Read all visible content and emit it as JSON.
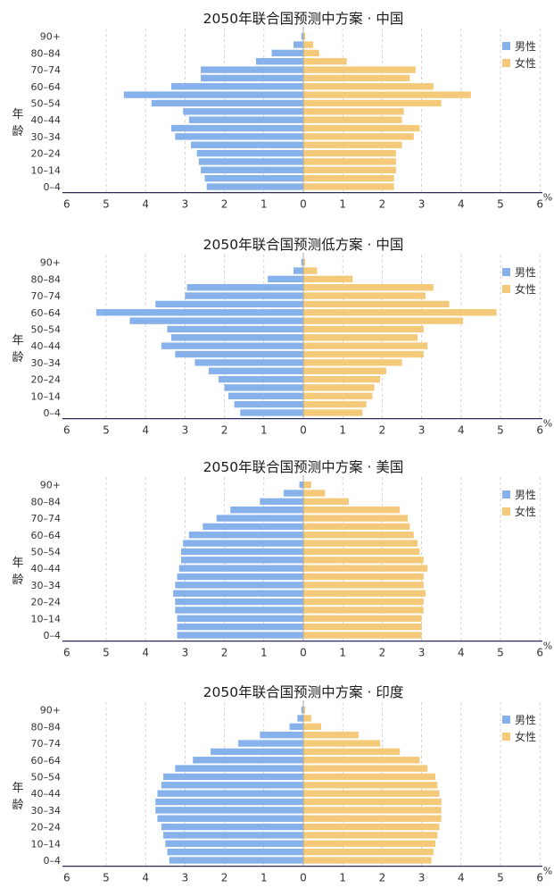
{
  "chart_data": [
    {
      "type": "bar",
      "title": "2050年联合国预测中方案 · 中国",
      "ylabel": "年龄",
      "xunit": "%",
      "xticks": [
        "6",
        "5",
        "4",
        "3",
        "2",
        "1",
        "0",
        "1",
        "2",
        "3",
        "4",
        "5",
        "6"
      ],
      "xlim": [
        -6,
        6
      ],
      "grid": true,
      "legend_position": "top-right",
      "colors": {
        "male": "#86b1ea",
        "female": "#f4c979"
      },
      "categories": [
        "0–4",
        "5–9",
        "10–14",
        "15–19",
        "20–24",
        "25–29",
        "30–34",
        "35–39",
        "40–44",
        "45–49",
        "50–54",
        "55–59",
        "60–64",
        "65–69",
        "70–74",
        "75–79",
        "80–84",
        "85–89",
        "90+"
      ],
      "category_labels_shown": [
        "0–4",
        "",
        "10–14",
        "",
        "20–24",
        "",
        "30–34",
        "",
        "40–44",
        "",
        "50–54",
        "",
        "60–64",
        "",
        "70–74",
        "",
        "80–84",
        "",
        "90+"
      ],
      "series": [
        {
          "name": "男性",
          "values": [
            2.45,
            2.5,
            2.6,
            2.65,
            2.7,
            2.85,
            3.25,
            3.35,
            2.9,
            3.05,
            3.85,
            4.55,
            3.35,
            2.6,
            2.6,
            1.2,
            0.8,
            0.25,
            0.05
          ]
        },
        {
          "name": "女性",
          "values": [
            2.3,
            2.3,
            2.35,
            2.35,
            2.35,
            2.5,
            2.8,
            2.95,
            2.5,
            2.55,
            3.5,
            4.25,
            3.3,
            2.7,
            2.85,
            1.1,
            0.4,
            0.25,
            0.05
          ]
        }
      ]
    },
    {
      "type": "bar",
      "title": "2050年联合国预测低方案 · 中国",
      "ylabel": "年龄",
      "xunit": "%",
      "xticks": [
        "6",
        "5",
        "4",
        "3",
        "2",
        "1",
        "0",
        "1",
        "2",
        "3",
        "4",
        "5",
        "6"
      ],
      "xlim": [
        -6,
        6
      ],
      "grid": true,
      "legend_position": "top-right",
      "colors": {
        "male": "#86b1ea",
        "female": "#f4c979"
      },
      "categories": [
        "0–4",
        "5–9",
        "10–14",
        "15–19",
        "20–24",
        "25–29",
        "30–34",
        "35–39",
        "40–44",
        "45–49",
        "50–54",
        "55–59",
        "60–64",
        "65–69",
        "70–74",
        "75–79",
        "80–84",
        "85–89",
        "90+"
      ],
      "category_labels_shown": [
        "0–4",
        "",
        "10–14",
        "",
        "20–24",
        "",
        "30–34",
        "",
        "40–44",
        "",
        "50–54",
        "",
        "60–64",
        "",
        "70–74",
        "",
        "80–84",
        "",
        "90+"
      ],
      "series": [
        {
          "name": "男性",
          "values": [
            1.6,
            1.75,
            1.9,
            2.0,
            2.15,
            2.4,
            2.75,
            3.25,
            3.6,
            3.35,
            3.45,
            4.4,
            5.25,
            3.75,
            3.0,
            2.95,
            0.9,
            0.25,
            0.05
          ]
        },
        {
          "name": "女性",
          "values": [
            1.5,
            1.6,
            1.75,
            1.8,
            1.95,
            2.1,
            2.5,
            3.05,
            3.15,
            2.9,
            3.05,
            4.05,
            4.9,
            3.7,
            3.1,
            3.3,
            1.25,
            0.35,
            0.05
          ]
        }
      ]
    },
    {
      "type": "bar",
      "title": "2050年联合国预测中方案 · 美国",
      "ylabel": "年龄",
      "xunit": "%",
      "xticks": [
        "6",
        "5",
        "4",
        "3",
        "2",
        "1",
        "0",
        "1",
        "2",
        "3",
        "4",
        "5",
        "6"
      ],
      "xlim": [
        -6,
        6
      ],
      "grid": true,
      "legend_position": "top-right",
      "colors": {
        "male": "#86b1ea",
        "female": "#f4c979"
      },
      "categories": [
        "0–4",
        "5–9",
        "10–14",
        "15–19",
        "20–24",
        "25–29",
        "30–34",
        "35–39",
        "40–44",
        "45–49",
        "50–54",
        "55–59",
        "60–64",
        "65–69",
        "70–74",
        "75–79",
        "80–84",
        "85–89",
        "90+"
      ],
      "category_labels_shown": [
        "0–4",
        "",
        "10–14",
        "",
        "20–24",
        "",
        "30–34",
        "",
        "40–44",
        "",
        "50–54",
        "",
        "60–64",
        "",
        "70–74",
        "",
        "80–84",
        "",
        "90+"
      ],
      "series": [
        {
          "name": "男性",
          "values": [
            3.2,
            3.2,
            3.2,
            3.25,
            3.25,
            3.3,
            3.25,
            3.2,
            3.15,
            3.1,
            3.1,
            3.05,
            2.9,
            2.55,
            2.2,
            1.85,
            1.1,
            0.5,
            0.1
          ]
        },
        {
          "name": "女性",
          "values": [
            3.0,
            3.0,
            3.0,
            3.05,
            3.05,
            3.1,
            3.05,
            3.05,
            3.15,
            3.05,
            2.95,
            2.9,
            2.8,
            2.7,
            2.65,
            2.45,
            1.15,
            0.55,
            0.2
          ]
        }
      ]
    },
    {
      "type": "bar",
      "title": "2050年联合国预测中方案 · 印度",
      "ylabel": "年龄",
      "xunit": "%",
      "xticks": [
        "6",
        "5",
        "4",
        "3",
        "2",
        "1",
        "0",
        "1",
        "2",
        "3",
        "4",
        "5",
        "6"
      ],
      "xlim": [
        -6,
        6
      ],
      "grid": true,
      "legend_position": "top-right",
      "colors": {
        "male": "#86b1ea",
        "female": "#f4c979"
      },
      "categories": [
        "0–4",
        "5–9",
        "10–14",
        "15–19",
        "20–24",
        "25–29",
        "30–34",
        "35–39",
        "40–44",
        "45–49",
        "50–54",
        "55–59",
        "60–64",
        "65–69",
        "70–74",
        "75–79",
        "80–84",
        "85–89",
        "90+"
      ],
      "category_labels_shown": [
        "0–4",
        "",
        "10–14",
        "",
        "20–24",
        "",
        "30–34",
        "",
        "40–44",
        "",
        "50–54",
        "",
        "60–64",
        "",
        "70–74",
        "",
        "80–84",
        "",
        "90+"
      ],
      "series": [
        {
          "name": "男性",
          "values": [
            3.4,
            3.45,
            3.5,
            3.55,
            3.6,
            3.7,
            3.75,
            3.75,
            3.7,
            3.6,
            3.55,
            3.25,
            2.8,
            2.35,
            1.65,
            1.1,
            0.35,
            0.15,
            0.05
          ]
        },
        {
          "name": "女性",
          "values": [
            3.25,
            3.3,
            3.35,
            3.4,
            3.45,
            3.5,
            3.5,
            3.5,
            3.45,
            3.4,
            3.35,
            3.15,
            2.95,
            2.45,
            1.95,
            1.4,
            0.45,
            0.2,
            0.05
          ]
        }
      ]
    }
  ]
}
